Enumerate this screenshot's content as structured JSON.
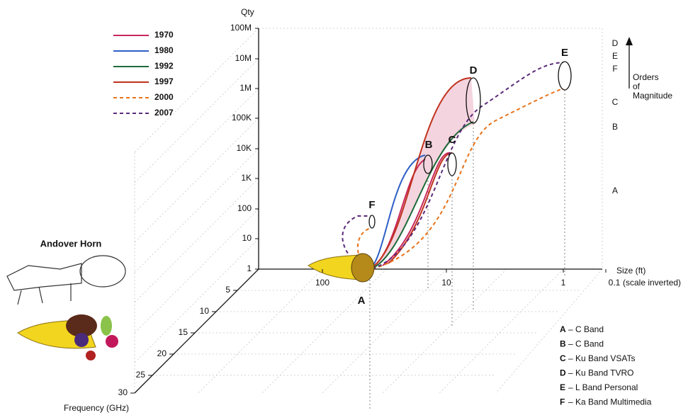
{
  "y_axis": {
    "label": "Qty",
    "ticks": [
      "100M",
      "10M",
      "1M",
      "100K",
      "10K",
      "1K",
      "100",
      "10",
      "1"
    ]
  },
  "x_axis": {
    "label": "Size (ft)",
    "note": "(scale inverted)",
    "ticks": [
      "100",
      "10",
      "1",
      "0.1"
    ]
  },
  "z_axis": {
    "label": "Frequency (GHz)",
    "ticks": [
      "5",
      "10",
      "15",
      "20",
      "25",
      "30"
    ]
  },
  "legend": [
    {
      "label": "1970",
      "color": "#c8285a",
      "dashed": false
    },
    {
      "label": "1980",
      "color": "#2e5fc7",
      "dashed": false
    },
    {
      "label": "1992",
      "color": "#1e6b3a",
      "dashed": false
    },
    {
      "label": "1997",
      "color": "#c0321e",
      "dashed": false
    },
    {
      "label": "2000",
      "color": "#e8731a",
      "dashed": true
    },
    {
      "label": "2007",
      "color": "#5b2a7a",
      "dashed": true
    }
  ],
  "magnitude_scale": {
    "letters": [
      "D",
      "E",
      "F",
      "C",
      "B",
      "A"
    ],
    "caption": [
      "Orders",
      "of",
      "Magnitude"
    ]
  },
  "point_labels": [
    "A",
    "B",
    "C",
    "D",
    "E",
    "F"
  ],
  "key": [
    {
      "letter": "A",
      "text": "– C Band"
    },
    {
      "letter": "B",
      "text": "– C Band"
    },
    {
      "letter": "C",
      "text": "– Ku Band VSATs"
    },
    {
      "letter": "D",
      "text": "– Ku Band TVRO"
    },
    {
      "letter": "E",
      "text": "– L Band Personal"
    },
    {
      "letter": "F",
      "text": "– Ka Band Multimedia"
    }
  ],
  "figure_label": "Andover Horn"
}
